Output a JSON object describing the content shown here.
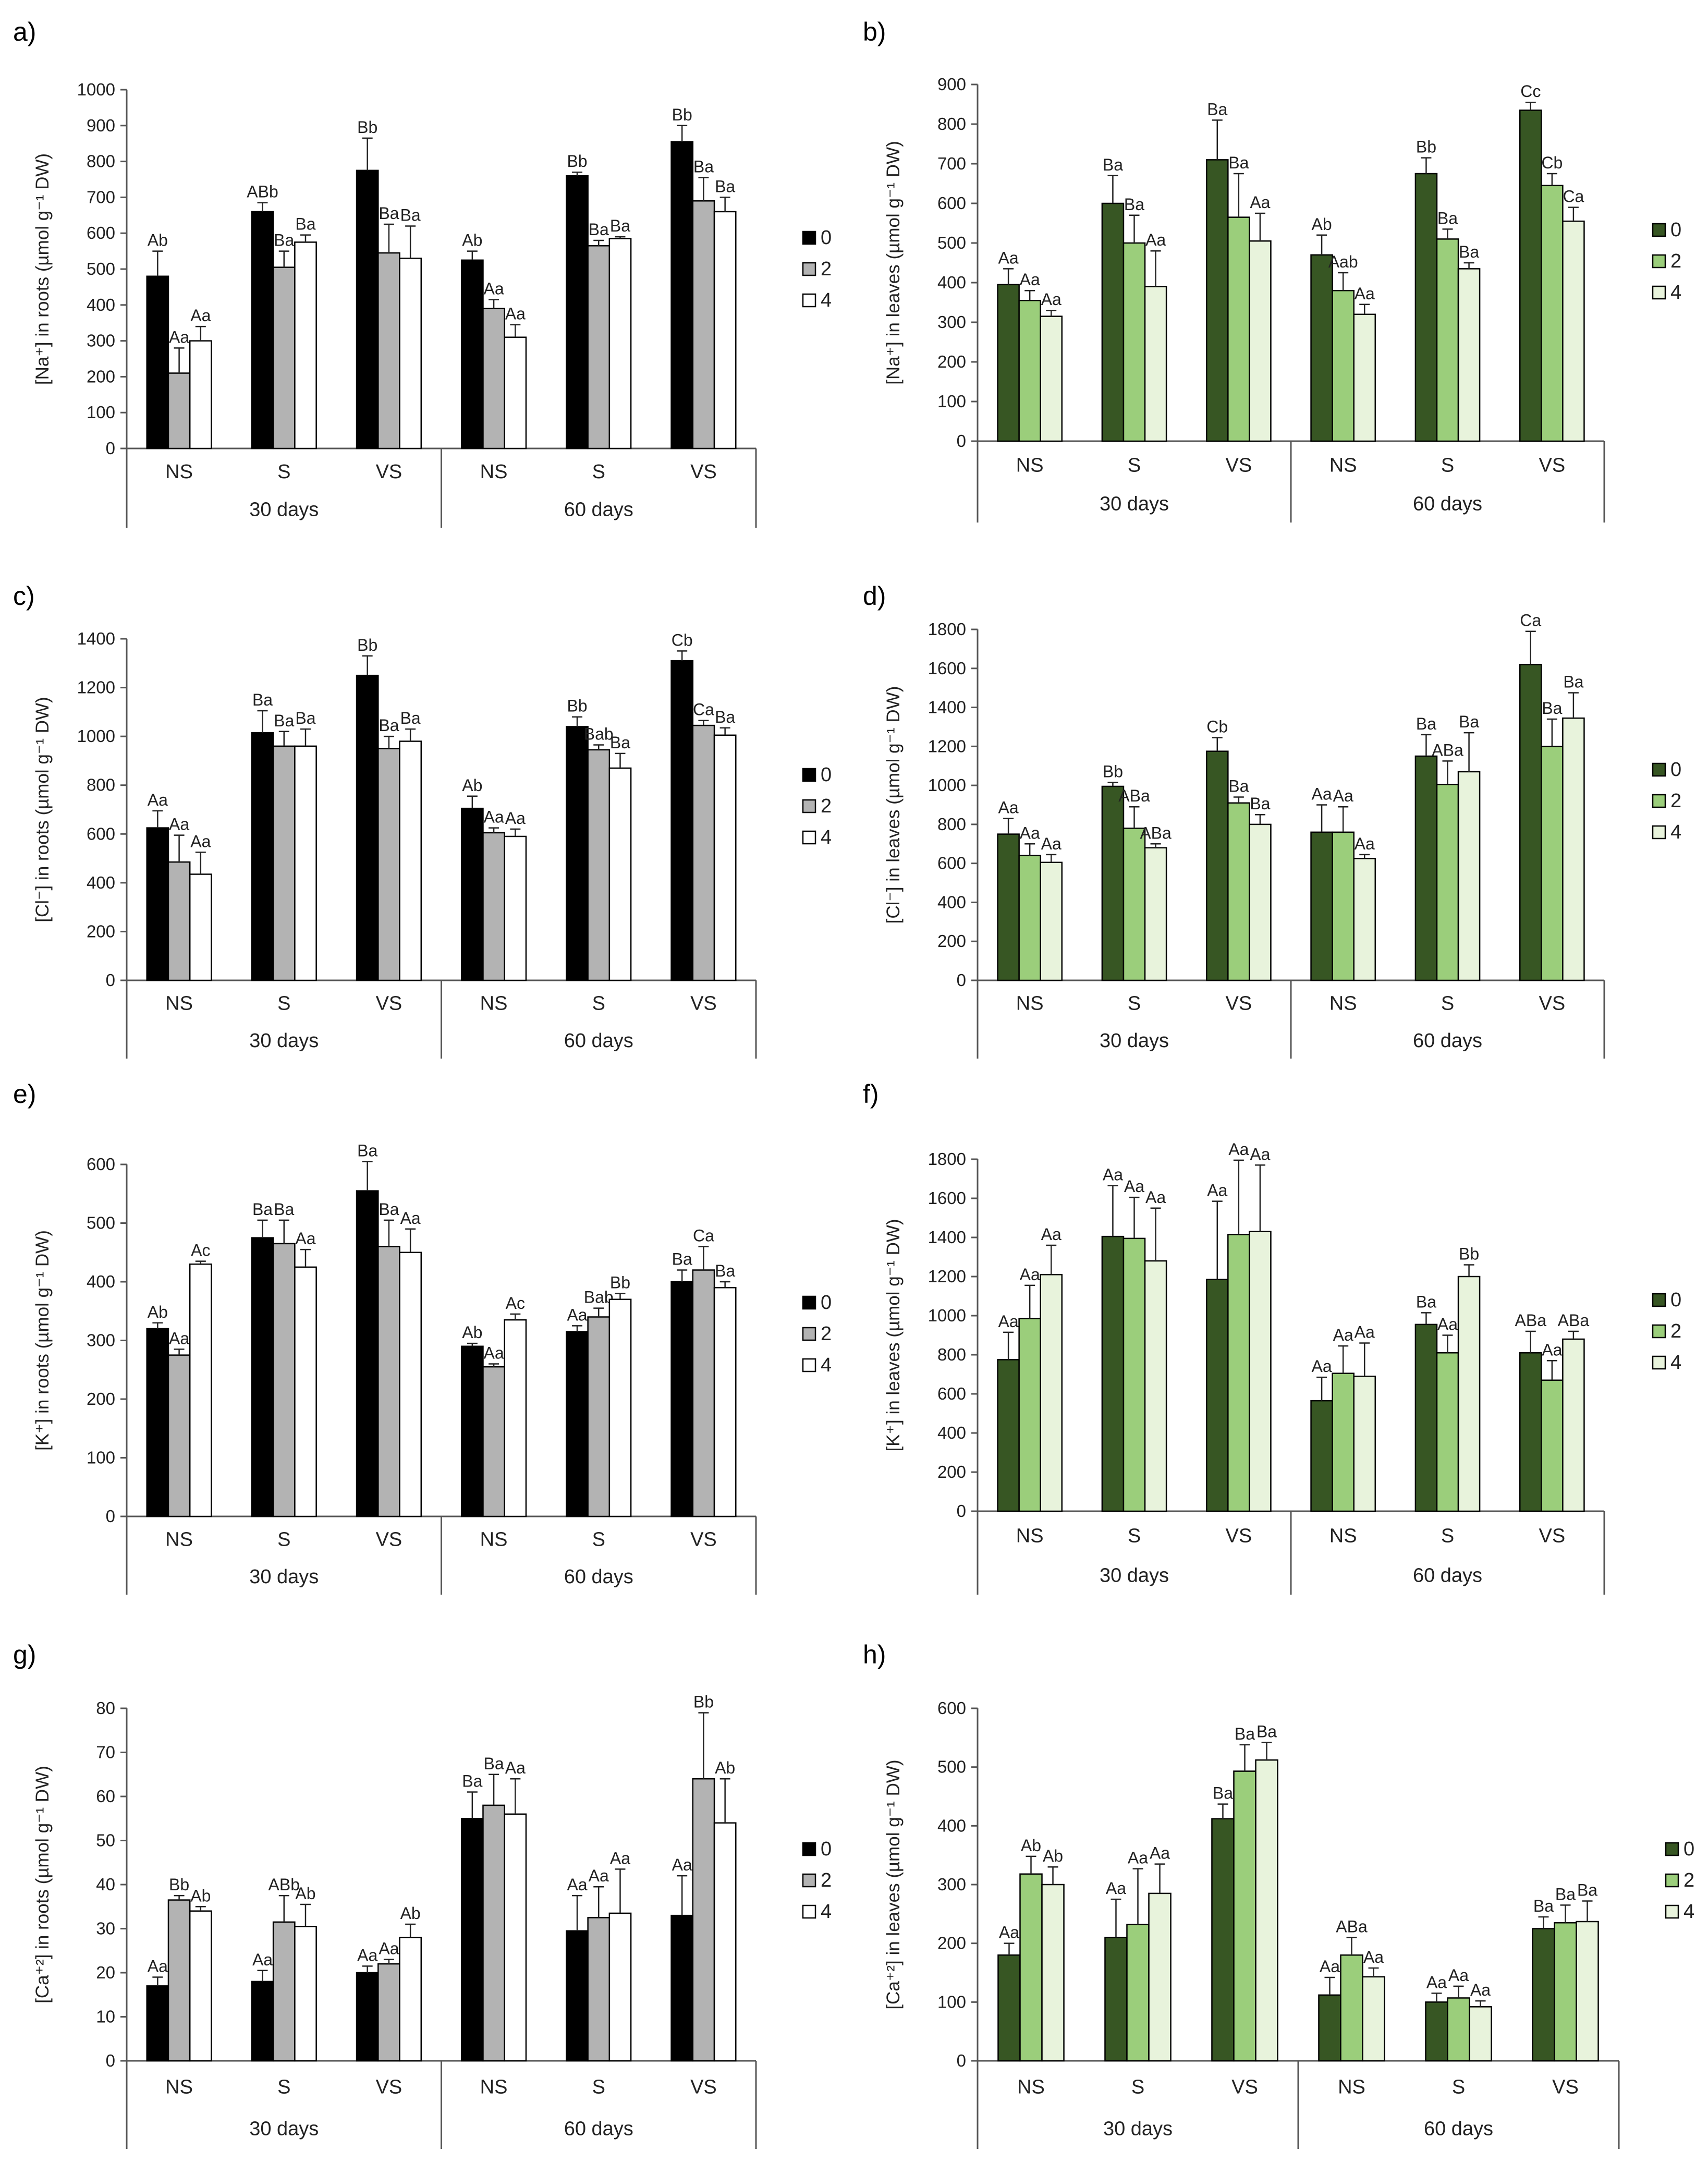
{
  "legend": [
    "0",
    "2",
    "4"
  ],
  "colors": {
    "roots": [
      "#000000",
      "#b3b3b3",
      "#ffffff"
    ],
    "leaves": [
      "#375623",
      "#9bce7b",
      "#e8f3dc"
    ],
    "axis": "#555555",
    "outline": "#000000"
  },
  "chart_data": [
    {
      "panel": "a)",
      "type": "bar",
      "tissue": "roots",
      "ylabel": "[Na⁺] in roots (µmol g⁻¹ DW)",
      "ylim": [
        0,
        1000
      ],
      "ticks": [
        0,
        100,
        200,
        300,
        400,
        500,
        600,
        700,
        800,
        900,
        1000
      ],
      "categories": [
        "NS",
        "S",
        "VS",
        "NS",
        "S",
        "VS"
      ],
      "groups": [
        "30 days",
        "60 days"
      ],
      "series": [
        {
          "name": "0",
          "values": [
            480,
            660,
            775,
            525,
            760,
            855
          ],
          "errors": [
            70,
            25,
            90,
            25,
            10,
            45
          ],
          "labels": [
            "Ab",
            "ABb",
            "Bb",
            "Ab",
            "Bb",
            "Bb"
          ]
        },
        {
          "name": "2",
          "values": [
            210,
            505,
            545,
            390,
            565,
            690
          ],
          "errors": [
            70,
            45,
            80,
            25,
            15,
            65
          ],
          "labels": [
            "Aa",
            "Ba",
            "Ba",
            "Aa",
            "Ba",
            "Ba"
          ]
        },
        {
          "name": "4",
          "values": [
            300,
            575,
            530,
            310,
            585,
            660
          ],
          "errors": [
            40,
            20,
            90,
            35,
            5,
            40
          ],
          "labels": [
            "Aa",
            "Ba",
            "Ba",
            "Aa",
            "Ba",
            "Ba"
          ]
        }
      ]
    },
    {
      "panel": "b)",
      "type": "bar",
      "tissue": "leaves",
      "ylabel": "[Na⁺] in leaves (µmol g⁻¹ DW)",
      "ylim": [
        0,
        900
      ],
      "ticks": [
        0,
        100,
        200,
        300,
        400,
        500,
        600,
        700,
        800,
        900
      ],
      "categories": [
        "NS",
        "S",
        "VS",
        "NS",
        "S",
        "VS"
      ],
      "groups": [
        "30 days",
        "60 days"
      ],
      "series": [
        {
          "name": "0",
          "values": [
            395,
            600,
            710,
            470,
            675,
            835
          ],
          "errors": [
            40,
            70,
            100,
            50,
            40,
            20
          ],
          "labels": [
            "Aa",
            "Ba",
            "Ba",
            "Ab",
            "Bb",
            "Cc"
          ]
        },
        {
          "name": "2",
          "values": [
            355,
            500,
            565,
            380,
            510,
            645
          ],
          "errors": [
            25,
            70,
            110,
            45,
            25,
            30
          ],
          "labels": [
            "Aa",
            "Ba",
            "Ba",
            "Aab",
            "Ba",
            "Cb"
          ]
        },
        {
          "name": "4",
          "values": [
            315,
            390,
            505,
            320,
            435,
            555
          ],
          "errors": [
            15,
            90,
            70,
            25,
            15,
            35
          ],
          "labels": [
            "Aa",
            "Aa",
            "Aa",
            "Aa",
            "Ba",
            "Ca"
          ]
        }
      ]
    },
    {
      "panel": "c)",
      "type": "bar",
      "tissue": "roots",
      "ylabel": "[Cl⁻] in roots (µmol g⁻¹ DW)",
      "ylim": [
        0,
        1400
      ],
      "ticks": [
        0,
        200,
        400,
        600,
        800,
        1000,
        1200,
        1400
      ],
      "categories": [
        "NS",
        "S",
        "VS",
        "NS",
        "S",
        "VS"
      ],
      "groups": [
        "30 days",
        "60 days"
      ],
      "series": [
        {
          "name": "0",
          "values": [
            625,
            1015,
            1250,
            705,
            1040,
            1310
          ],
          "errors": [
            70,
            90,
            80,
            50,
            40,
            40
          ],
          "labels": [
            "Aa",
            "Ba",
            "Bb",
            "Ab",
            "Bb",
            "Cb"
          ]
        },
        {
          "name": "2",
          "values": [
            485,
            960,
            950,
            605,
            945,
            1045
          ],
          "errors": [
            110,
            60,
            50,
            20,
            20,
            20
          ],
          "labels": [
            "Aa",
            "Ba",
            "Ba",
            "Aa",
            "Bab",
            "Ca"
          ]
        },
        {
          "name": "4",
          "values": [
            435,
            960,
            980,
            590,
            870,
            1005
          ],
          "errors": [
            90,
            70,
            50,
            30,
            60,
            30
          ],
          "labels": [
            "Aa",
            "Ba",
            "Ba",
            "Aa",
            "Ba",
            "Ba"
          ]
        }
      ]
    },
    {
      "panel": "d)",
      "type": "bar",
      "tissue": "leaves",
      "ylabel": "[Cl⁻] in leaves (µmol g⁻¹ DW)",
      "ylim": [
        0,
        1800
      ],
      "ticks": [
        0,
        200,
        400,
        600,
        800,
        1000,
        1200,
        1400,
        1600,
        1800
      ],
      "categories": [
        "NS",
        "S",
        "VS",
        "NS",
        "S",
        "VS"
      ],
      "groups": [
        "30 days",
        "60 days"
      ],
      "series": [
        {
          "name": "0",
          "values": [
            750,
            995,
            1175,
            760,
            1150,
            1620
          ],
          "errors": [
            80,
            20,
            70,
            140,
            110,
            170
          ],
          "labels": [
            "Aa",
            "Bb",
            "Cb",
            "Aa",
            "Ba",
            "Ca"
          ]
        },
        {
          "name": "2",
          "values": [
            640,
            780,
            910,
            760,
            1005,
            1200
          ],
          "errors": [
            60,
            110,
            30,
            130,
            120,
            140
          ],
          "labels": [
            "Aa",
            "ABa",
            "Ba",
            "Aa",
            "ABa",
            "Ba"
          ]
        },
        {
          "name": "4",
          "values": [
            605,
            680,
            800,
            625,
            1070,
            1345
          ],
          "errors": [
            40,
            20,
            50,
            20,
            200,
            130
          ],
          "labels": [
            "Aa",
            "ABa",
            "Ba",
            "Aa",
            "Ba",
            "Ba"
          ]
        }
      ]
    },
    {
      "panel": "e)",
      "type": "bar",
      "tissue": "roots",
      "ylabel": "[K⁺] in roots (µmol g⁻¹ DW)",
      "ylim": [
        0,
        600
      ],
      "ticks": [
        0,
        100,
        200,
        300,
        400,
        500,
        600
      ],
      "categories": [
        "NS",
        "S",
        "VS",
        "NS",
        "S",
        "VS"
      ],
      "groups": [
        "30 days",
        "60 days"
      ],
      "series": [
        {
          "name": "0",
          "values": [
            320,
            475,
            555,
            290,
            315,
            400
          ],
          "errors": [
            10,
            30,
            50,
            5,
            10,
            20
          ],
          "labels": [
            "Ab",
            "Ba",
            "Ba",
            "Ab",
            "Aa",
            "Ba"
          ]
        },
        {
          "name": "2",
          "values": [
            275,
            465,
            460,
            255,
            340,
            420
          ],
          "errors": [
            10,
            40,
            45,
            5,
            15,
            40
          ],
          "labels": [
            "Aa",
            "Ba",
            "Ba",
            "Aa",
            "Bab",
            "Ca"
          ]
        },
        {
          "name": "4",
          "values": [
            430,
            425,
            450,
            335,
            370,
            390
          ],
          "errors": [
            5,
            30,
            40,
            10,
            10,
            10
          ],
          "labels": [
            "Ac",
            "Aa",
            "Aa",
            "Ac",
            "Bb",
            "Ba"
          ]
        }
      ]
    },
    {
      "panel": "f)",
      "type": "bar",
      "tissue": "leaves",
      "ylabel": "[K⁺] in leaves (µmol g⁻¹ DW)",
      "ylim": [
        0,
        1800
      ],
      "ticks": [
        0,
        200,
        400,
        600,
        800,
        1000,
        1200,
        1400,
        1600,
        1800
      ],
      "categories": [
        "NS",
        "S",
        "VS",
        "NS",
        "S",
        "VS"
      ],
      "groups": [
        "30 days",
        "60 days"
      ],
      "series": [
        {
          "name": "0",
          "values": [
            775,
            1405,
            1185,
            565,
            955,
            810
          ],
          "errors": [
            140,
            260,
            400,
            120,
            60,
            110
          ],
          "labels": [
            "Aa",
            "Aa",
            "Aa",
            "Aa",
            "Ba",
            "ABa"
          ]
        },
        {
          "name": "2",
          "values": [
            985,
            1395,
            1415,
            705,
            810,
            670
          ],
          "errors": [
            170,
            210,
            380,
            140,
            90,
            100
          ],
          "labels": [
            "Aa",
            "Aa",
            "Aa",
            "Aa",
            "Aa",
            "Aa"
          ]
        },
        {
          "name": "4",
          "values": [
            1210,
            1280,
            1430,
            690,
            1200,
            880
          ],
          "errors": [
            150,
            270,
            340,
            170,
            60,
            40
          ],
          "labels": [
            "Aa",
            "Aa",
            "Aa",
            "Aa",
            "Bb",
            "ABa"
          ]
        }
      ]
    },
    {
      "panel": "g)",
      "type": "bar",
      "tissue": "roots",
      "ylabel": "[Ca⁺²] in roots (µmol g⁻¹ DW)",
      "ylim": [
        0,
        80
      ],
      "ticks": [
        0,
        10,
        20,
        30,
        40,
        50,
        60,
        70,
        80
      ],
      "categories": [
        "NS",
        "S",
        "VS",
        "NS",
        "S",
        "VS"
      ],
      "groups": [
        "30 days",
        "60 days"
      ],
      "series": [
        {
          "name": "0",
          "values": [
            17,
            18,
            20,
            55,
            29.5,
            33
          ],
          "errors": [
            2,
            2.5,
            1.5,
            6,
            8,
            9
          ],
          "labels": [
            "Aa",
            "Aa",
            "Aa",
            "Ba",
            "Aa",
            "Aa"
          ]
        },
        {
          "name": "2",
          "values": [
            36.5,
            31.5,
            22,
            58,
            32.5,
            64
          ],
          "errors": [
            1,
            6,
            1,
            7,
            7,
            15
          ],
          "labels": [
            "Bb",
            "ABb",
            "Aa",
            "Ba",
            "Aa",
            "Bb"
          ]
        },
        {
          "name": "4",
          "values": [
            34,
            30.5,
            28,
            56,
            33.5,
            54
          ],
          "errors": [
            1,
            5,
            3,
            8,
            10,
            10
          ],
          "labels": [
            "Ab",
            "Ab",
            "Ab",
            "Aa",
            "Aa",
            "Ab"
          ]
        }
      ]
    },
    {
      "panel": "h)",
      "type": "bar",
      "tissue": "leaves",
      "ylabel": "[Ca⁺²] in leaves (µmol g⁻¹ DW)",
      "ylim": [
        0,
        600
      ],
      "ticks": [
        0,
        100,
        200,
        300,
        400,
        500,
        600
      ],
      "categories": [
        "NS",
        "S",
        "VS",
        "NS",
        "S",
        "VS"
      ],
      "groups": [
        "30 days",
        "60 days"
      ],
      "series": [
        {
          "name": "0",
          "values": [
            180,
            210,
            412,
            112,
            100,
            225
          ],
          "errors": [
            20,
            65,
            25,
            30,
            15,
            20
          ],
          "labels": [
            "Aa",
            "Aa",
            "Ba",
            "Aa",
            "Aa",
            "Ba"
          ]
        },
        {
          "name": "2",
          "values": [
            318,
            232,
            493,
            180,
            107,
            235
          ],
          "errors": [
            30,
            95,
            45,
            30,
            20,
            30
          ],
          "labels": [
            "Ab",
            "Aa",
            "Ba",
            "ABa",
            "Aa",
            "Ba"
          ]
        },
        {
          "name": "4",
          "values": [
            300,
            285,
            512,
            143,
            92,
            237
          ],
          "errors": [
            30,
            50,
            30,
            15,
            10,
            35
          ],
          "labels": [
            "Ab",
            "Aa",
            "Ba",
            "Aa",
            "Aa",
            "Ba"
          ]
        }
      ]
    }
  ]
}
